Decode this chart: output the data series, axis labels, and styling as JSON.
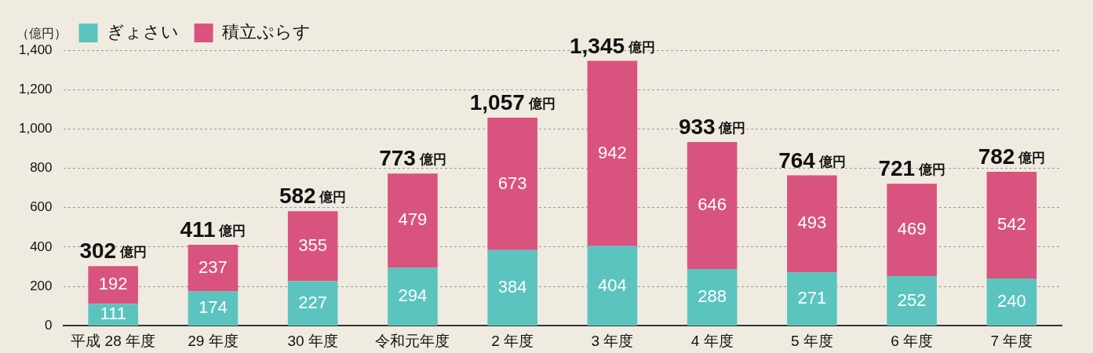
{
  "chart_data": {
    "type": "bar",
    "stacked": true,
    "ylabel": "（億円）",
    "categories": [
      "平成 28 年度",
      "29 年度",
      "30 年度",
      "令和元年度",
      "2 年度",
      "3 年度",
      "4 年度",
      "5 年度",
      "6 年度",
      "7 年度"
    ],
    "series": [
      {
        "name": "ぎょさい",
        "color": "#5bc4bf",
        "values": [
          111,
          174,
          227,
          294,
          384,
          404,
          288,
          271,
          252,
          240
        ]
      },
      {
        "name": "積立ぷらす",
        "color": "#d9537f",
        "values": [
          192,
          237,
          355,
          479,
          673,
          942,
          646,
          493,
          469,
          542
        ]
      }
    ],
    "totals": [
      "302 億円",
      "411 億円",
      "582 億円",
      "773 億円",
      "1,057 億円",
      "1,345 億円",
      "933 億円",
      "764 億円",
      "721 億円",
      "782 億円"
    ],
    "data_labels": true,
    "ylim": [
      0,
      1400
    ],
    "yticks": [
      0,
      200,
      400,
      600,
      800,
      {
        "value": 1000,
        "label": "1,000"
      },
      {
        "value": 1200,
        "label": "1,200"
      },
      {
        "value": 1400,
        "label": "1,400"
      }
    ],
    "grid": "y",
    "legend": "top left"
  }
}
